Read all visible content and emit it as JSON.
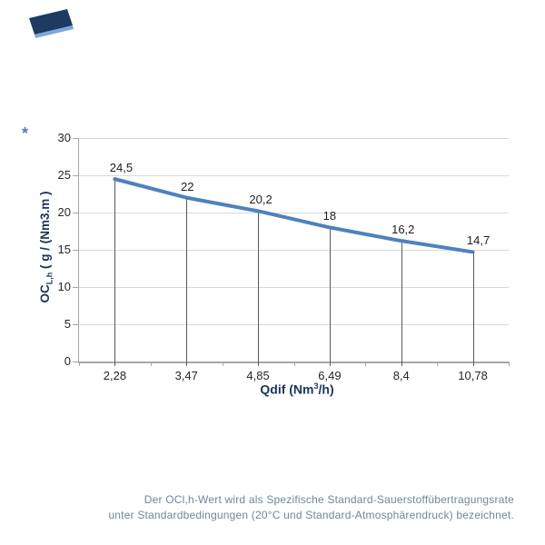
{
  "page": {
    "background": "#ffffff"
  },
  "logo": {
    "primary_color": "#1d3a63",
    "accent_color": "#7da7d9"
  },
  "footnote_marker": "*",
  "chart_data": {
    "type": "line",
    "title": "",
    "x": [
      2.28,
      3.47,
      4.85,
      6.49,
      8.4,
      10.78
    ],
    "categories": [
      "2,28",
      "3,47",
      "4,85",
      "6,49",
      "8,4",
      "10,78"
    ],
    "values": [
      24.5,
      22,
      20.2,
      18,
      16.2,
      14.7
    ],
    "point_labels": [
      "24,5",
      "22",
      "20,2",
      "18",
      "16,2",
      "14,7"
    ],
    "xlabel": "Qdif (Nm³/h)",
    "xlabel_prefix": "Qdif (Nm",
    "xlabel_sup": "3",
    "xlabel_suffix": "/h)",
    "ylabel": "OCL,h ( g / (Nm3.m )",
    "ylabel_prefix": "OC",
    "ylabel_sub": "L,h",
    "ylabel_suffix": " ( g / (Nm3.m )",
    "ylim": [
      0,
      30
    ],
    "ytick_step": 5,
    "yticks": [
      "0",
      "5",
      "10",
      "15",
      "20",
      "25",
      "30"
    ],
    "grid": true,
    "legend": "none",
    "line_color": "#4f81bd",
    "drop_line_color": "#595959",
    "gridline_color": "#d9d9d9",
    "axis_color": "#a6a6a6",
    "tick_label_color": "#262626",
    "axis_title_color": "#17365d"
  },
  "caption": {
    "line1": "Der OCl,h-Wert wird als Spezifische Standard-Sauerstoffübertragungsrate",
    "line2": "unter Standardbedingungen (20°C und Standard-Atmosphärendruck) bezeichnet.",
    "color": "#6e86a0"
  }
}
